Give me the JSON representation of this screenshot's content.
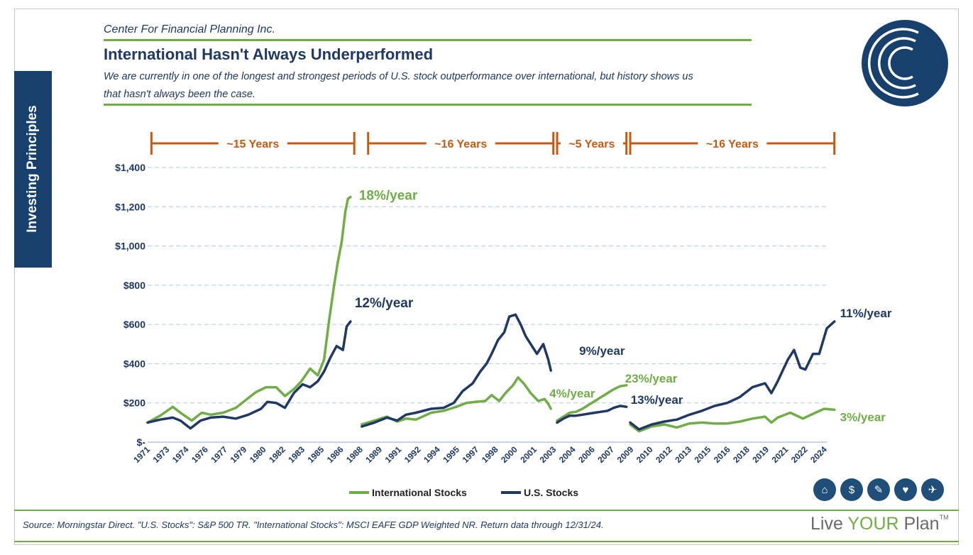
{
  "header": {
    "org": "Center For Financial Planning Inc.",
    "title": "International Hasn't Always Underperformed",
    "subtitle": "We are currently in one of the longest and strongest periods of U.S. stock outperformance over international, but history shows us that hasn't always been the case."
  },
  "sidebar": {
    "label": "Investing Principles"
  },
  "footer": {
    "source": "Source: Morningstar Direct. \"U.S. Stocks\": S&P 500 TR. \"International Stocks\": MSCI EAFE GDP Weighted NR. Return data through 12/31/24.",
    "brand_left": "Live ",
    "brand_accent": "YOUR",
    "brand_right": " Plan",
    "trademark": "TM"
  },
  "icons": [
    "home-icon",
    "piggy-bank-icon",
    "graduation-cap-icon",
    "heart-hands-icon",
    "airplane-icon"
  ],
  "colors": {
    "international": "#70ad47",
    "us": "#1f3864",
    "bracket": "#c55a11",
    "grid": "#b4c7e7",
    "navy": "#17406d"
  },
  "chart_data": {
    "type": "line",
    "ylim": [
      0,
      1400
    ],
    "y_ticks": [
      {
        "value": 0,
        "label": "$-"
      },
      {
        "value": 200,
        "label": "$200"
      },
      {
        "value": 400,
        "label": "$400"
      },
      {
        "value": 600,
        "label": "$600"
      },
      {
        "value": 800,
        "label": "$800"
      },
      {
        "value": 1000,
        "label": "$1,000"
      },
      {
        "value": 1200,
        "label": "$1,200"
      },
      {
        "value": 1400,
        "label": "$1,400"
      }
    ],
    "x_range": [
      1971,
      2024.9
    ],
    "x_ticks": [
      {
        "value": 1971.0,
        "label": "1971"
      },
      {
        "value": 1972.6,
        "label": "1973"
      },
      {
        "value": 1974.2,
        "label": "1974"
      },
      {
        "value": 1975.8,
        "label": "1976"
      },
      {
        "value": 1977.4,
        "label": "1977"
      },
      {
        "value": 1978.9,
        "label": "1979"
      },
      {
        "value": 1980.5,
        "label": "1980"
      },
      {
        "value": 1982.1,
        "label": "1982"
      },
      {
        "value": 1983.7,
        "label": "1983"
      },
      {
        "value": 1985.3,
        "label": "1985"
      },
      {
        "value": 1986.9,
        "label": "1986"
      },
      {
        "value": 1988.5,
        "label": "1988"
      },
      {
        "value": 1990.1,
        "label": "1989"
      },
      {
        "value": 1991.7,
        "label": "1991"
      },
      {
        "value": 1993.3,
        "label": "1992"
      },
      {
        "value": 1994.8,
        "label": "1994"
      },
      {
        "value": 1996.4,
        "label": "1995"
      },
      {
        "value": 1998.0,
        "label": "1997"
      },
      {
        "value": 1999.6,
        "label": "1998"
      },
      {
        "value": 2001.2,
        "label": "2000"
      },
      {
        "value": 2002.8,
        "label": "2001"
      },
      {
        "value": 2004.4,
        "label": "2003"
      },
      {
        "value": 2006.0,
        "label": "2004"
      },
      {
        "value": 2007.6,
        "label": "2006"
      },
      {
        "value": 2009.2,
        "label": "2007"
      },
      {
        "value": 2010.7,
        "label": "2009"
      },
      {
        "value": 2012.3,
        "label": "2010"
      },
      {
        "value": 2013.9,
        "label": "2012"
      },
      {
        "value": 2015.5,
        "label": "2013"
      },
      {
        "value": 2017.1,
        "label": "2015"
      },
      {
        "value": 2018.7,
        "label": "2016"
      },
      {
        "value": 2020.3,
        "label": "2018"
      },
      {
        "value": 2021.9,
        "label": "2019"
      },
      {
        "value": 2023.5,
        "label": "2021"
      },
      {
        "value": 2025.1,
        "label": "2022"
      },
      {
        "value": 2026.6,
        "label": "2024"
      }
    ],
    "legend": [
      {
        "name": "International Stocks",
        "color": "#70ad47"
      },
      {
        "name": "U.S. Stocks",
        "color": "#1f3864"
      }
    ],
    "periods": [
      {
        "label": "~15 Years",
        "x_start": 1971.3,
        "x_end": 1987.4
      },
      {
        "label": "~16 Years",
        "x_start": 1988.5,
        "x_end": 2003.2
      },
      {
        "label": "~5 Years",
        "x_start": 2003.5,
        "x_end": 2009.0
      },
      {
        "label": "~16 Years",
        "x_start": 2009.3,
        "x_end": 2025.5
      }
    ],
    "series": [
      {
        "name": "International Stocks",
        "segment": 1,
        "x": [
          1971.0,
          1972.0,
          1973.0,
          1973.6,
          1974.5,
          1975.3,
          1976.0,
          1977.0,
          1978.0,
          1979.0,
          1979.6,
          1980.4,
          1981.2,
          1981.9,
          1982.6,
          1983.2,
          1983.9,
          1984.5,
          1985.0,
          1985.4,
          1985.8,
          1986.1,
          1986.4,
          1986.7,
          1986.9,
          1987.1
        ],
        "y": [
          100,
          135,
          180,
          150,
          110,
          150,
          140,
          150,
          175,
          225,
          255,
          280,
          280,
          235,
          270,
          310,
          375,
          340,
          420,
          620,
          800,
          920,
          1020,
          1180,
          1240,
          1250
        ]
      },
      {
        "name": "U.S. Stocks",
        "segment": 1,
        "x": [
          1971.0,
          1972.0,
          1973.0,
          1973.6,
          1974.4,
          1975.2,
          1976.0,
          1977.0,
          1978.0,
          1979.0,
          1980.0,
          1980.5,
          1981.2,
          1981.9,
          1982.6,
          1983.3,
          1983.9,
          1984.5,
          1985.0,
          1985.5,
          1986.0,
          1986.5,
          1986.8,
          1987.1
        ],
        "y": [
          100,
          115,
          125,
          110,
          70,
          110,
          125,
          130,
          120,
          140,
          170,
          205,
          200,
          175,
          250,
          295,
          280,
          310,
          360,
          430,
          490,
          470,
          590,
          615
        ]
      },
      {
        "name": "International Stocks",
        "segment": 2,
        "x": [
          1988.0,
          1989.0,
          1990.0,
          1990.8,
          1991.5,
          1992.3,
          1993.5,
          1994.5,
          1995.5,
          1996.3,
          1997.0,
          1997.8,
          1998.3,
          1998.9,
          1999.4,
          2000.0,
          2000.4,
          2000.9,
          2001.4,
          2002.0,
          2002.5,
          2002.8,
          2003.0
        ],
        "y": [
          90,
          110,
          130,
          105,
          120,
          115,
          150,
          160,
          180,
          200,
          205,
          210,
          240,
          210,
          250,
          290,
          330,
          295,
          250,
          210,
          220,
          195,
          170
        ]
      },
      {
        "name": "U.S. Stocks",
        "segment": 2,
        "x": [
          1988.0,
          1989.0,
          1990.0,
          1990.8,
          1991.5,
          1992.3,
          1993.5,
          1994.5,
          1995.3,
          1996.0,
          1996.8,
          1997.4,
          1997.9,
          1998.3,
          1998.8,
          1999.3,
          1999.7,
          2000.2,
          2000.6,
          2001.0,
          2001.4,
          2001.9,
          2002.4,
          2002.8,
          2003.0
        ],
        "y": [
          80,
          100,
          125,
          110,
          140,
          150,
          170,
          175,
          200,
          260,
          300,
          360,
          400,
          450,
          520,
          560,
          640,
          650,
          600,
          540,
          500,
          450,
          500,
          420,
          365
        ]
      },
      {
        "name": "International Stocks",
        "segment": 3,
        "x": [
          2003.5,
          2004.0,
          2004.5,
          2005.0,
          2005.5,
          2006.0,
          2006.5,
          2007.0,
          2007.5,
          2008.0,
          2008.5,
          2009.0
        ],
        "y": [
          110,
          130,
          150,
          155,
          170,
          190,
          210,
          230,
          250,
          270,
          285,
          290
        ]
      },
      {
        "name": "U.S. Stocks",
        "segment": 3,
        "x": [
          2003.5,
          2004.0,
          2004.5,
          2005.0,
          2005.5,
          2006.0,
          2006.5,
          2007.0,
          2007.5,
          2008.0,
          2008.5,
          2009.0
        ],
        "y": [
          100,
          120,
          135,
          135,
          140,
          145,
          150,
          155,
          160,
          175,
          185,
          180
        ]
      },
      {
        "name": "International Stocks",
        "segment": 4,
        "x": [
          2009.3,
          2010.0,
          2011.0,
          2012.0,
          2013.0,
          2014.0,
          2015.0,
          2016.0,
          2017.0,
          2018.0,
          2019.0,
          2020.0,
          2020.5,
          2021.0,
          2022.0,
          2023.0,
          2024.0,
          2024.7,
          2025.5
        ],
        "y": [
          90,
          55,
          80,
          90,
          75,
          95,
          100,
          95,
          95,
          105,
          120,
          130,
          100,
          125,
          150,
          120,
          150,
          170,
          165
        ]
      },
      {
        "name": "U.S. Stocks",
        "segment": 4,
        "x": [
          2009.3,
          2010.0,
          2011.0,
          2012.0,
          2013.0,
          2014.0,
          2015.0,
          2016.0,
          2017.0,
          2018.0,
          2019.0,
          2020.0,
          2020.5,
          2021.0,
          2021.8,
          2022.3,
          2022.8,
          2023.2,
          2023.8,
          2024.3,
          2024.9,
          2025.5
        ],
        "y": [
          100,
          65,
          90,
          105,
          115,
          140,
          160,
          185,
          200,
          230,
          280,
          300,
          250,
          310,
          420,
          470,
          380,
          370,
          450,
          450,
          580,
          615
        ]
      }
    ],
    "annotations": [
      {
        "label": "18%/year",
        "series": "International Stocks",
        "period": 1
      },
      {
        "label": "12%/year",
        "series": "U.S. Stocks",
        "period": 1
      },
      {
        "label": "9%/year",
        "series": "U.S. Stocks",
        "period": 2
      },
      {
        "label": "4%/year",
        "series": "International Stocks",
        "period": 2
      },
      {
        "label": "23%/year",
        "series": "International Stocks",
        "period": 3
      },
      {
        "label": "13%/year",
        "series": "U.S. Stocks",
        "period": 3
      },
      {
        "label": "11%/year",
        "series": "U.S. Stocks",
        "period": 4
      },
      {
        "label": "3%/year",
        "series": "International Stocks",
        "period": 4
      }
    ]
  }
}
